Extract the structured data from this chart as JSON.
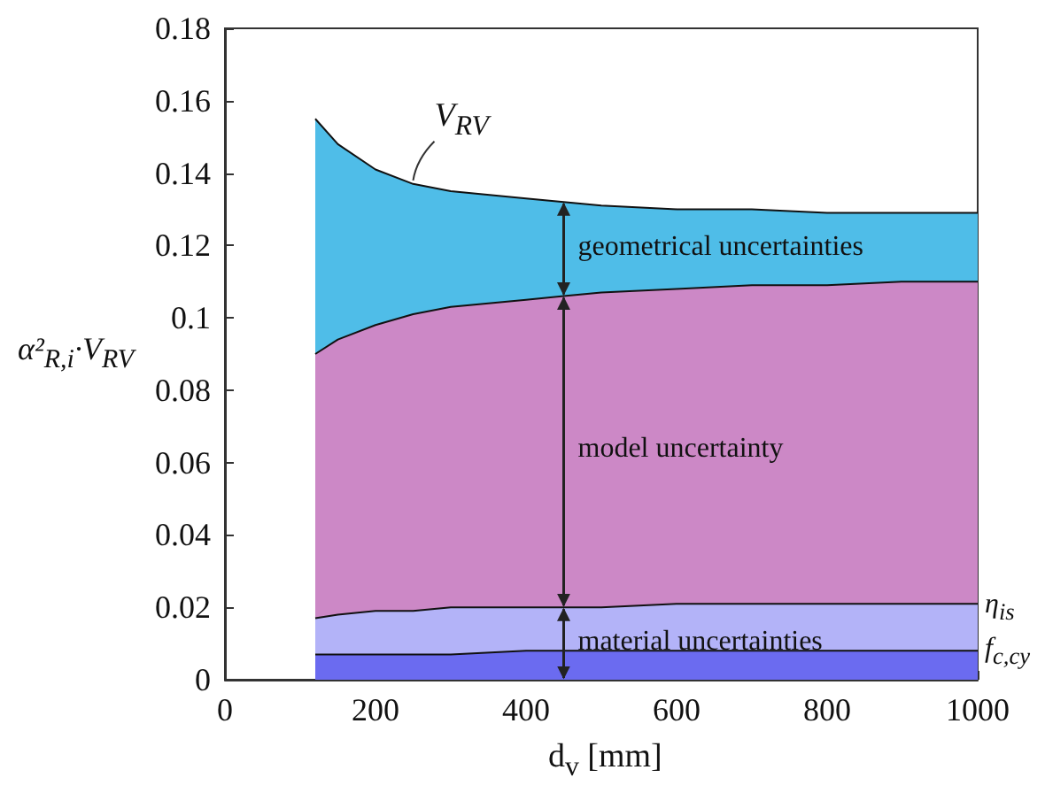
{
  "chart_data": {
    "type": "area",
    "stacked": true,
    "xlabel": "d$_{v}$ [mm]",
    "ylabel": "α²$_{R,i}$·V$_{RV}$",
    "x": [
      120,
      150,
      200,
      250,
      300,
      400,
      450,
      500,
      600,
      700,
      800,
      900,
      1000
    ],
    "series": [
      {
        "name": "f$_{c,cy}$",
        "color": "#6b6bf0",
        "values": [
          0.007,
          0.007,
          0.007,
          0.007,
          0.007,
          0.008,
          0.008,
          0.008,
          0.008,
          0.008,
          0.008,
          0.008,
          0.008
        ]
      },
      {
        "name": "η$_{is}$",
        "color": "#b3b3f8",
        "values": [
          0.01,
          0.011,
          0.012,
          0.012,
          0.013,
          0.012,
          0.012,
          0.012,
          0.013,
          0.013,
          0.013,
          0.013,
          0.013
        ]
      },
      {
        "name": "model uncertainty",
        "color": "#cc88c6",
        "values": [
          0.073,
          0.076,
          0.079,
          0.082,
          0.083,
          0.085,
          0.086,
          0.087,
          0.087,
          0.088,
          0.088,
          0.089,
          0.089
        ]
      },
      {
        "name": "geometrical uncertainties",
        "color": "#4fbde8",
        "values": [
          0.065,
          0.054,
          0.043,
          0.036,
          0.032,
          0.028,
          0.026,
          0.024,
          0.022,
          0.021,
          0.02,
          0.019,
          0.019
        ]
      }
    ],
    "annotations": [
      "V$_{RV}$",
      "material uncertainties"
    ],
    "xlim": [
      0,
      1000
    ],
    "xticks": [
      0,
      200,
      400,
      600,
      800,
      1000
    ],
    "ylim": [
      0,
      0.18
    ],
    "yticks": [
      0,
      0.02,
      0.04,
      0.06,
      0.08,
      0.1,
      0.12,
      0.14,
      0.16,
      0.18
    ],
    "grid": false
  }
}
